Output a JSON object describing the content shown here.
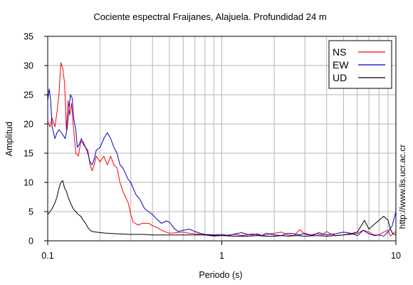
{
  "chart_data": {
    "type": "line",
    "title": "Cociente espectral Fraijanes, Alajuela. Profundidad 24 m",
    "xlabel": "Periodo (s)",
    "ylabel": "Amplitud",
    "xscale": "log",
    "xlim": [
      0.1,
      10
    ],
    "ylim": [
      0,
      35
    ],
    "xticks": [
      0.1,
      1,
      10
    ],
    "xtick_labels": [
      "0.1",
      "1",
      "10"
    ],
    "yticks": [
      0,
      5,
      10,
      15,
      20,
      25,
      30,
      35
    ],
    "ytick_labels": [
      "0",
      "5",
      "10",
      "15",
      "20",
      "25",
      "30",
      "35"
    ],
    "grid": true,
    "legend_position": "top-right",
    "watermark": "http://www.lis.ucr.ac.cr",
    "series": [
      {
        "name": "NS",
        "color": "#ff0000",
        "points": [
          [
            0.1,
            20.5
          ],
          [
            0.103,
            19.5
          ],
          [
            0.106,
            21
          ],
          [
            0.11,
            19.5
          ],
          [
            0.113,
            22
          ],
          [
            0.116,
            25
          ],
          [
            0.119,
            30.5
          ],
          [
            0.122,
            29.5
          ],
          [
            0.125,
            27
          ],
          [
            0.128,
            19
          ],
          [
            0.131,
            24
          ],
          [
            0.134,
            21.5
          ],
          [
            0.137,
            23.5
          ],
          [
            0.14,
            20
          ],
          [
            0.145,
            15
          ],
          [
            0.15,
            14.5
          ],
          [
            0.155,
            17
          ],
          [
            0.16,
            17
          ],
          [
            0.165,
            16
          ],
          [
            0.17,
            15.5
          ],
          [
            0.175,
            13
          ],
          [
            0.18,
            12
          ],
          [
            0.185,
            13
          ],
          [
            0.19,
            14.5
          ],
          [
            0.2,
            13.5
          ],
          [
            0.21,
            14.5
          ],
          [
            0.22,
            13
          ],
          [
            0.23,
            14.5
          ],
          [
            0.24,
            13
          ],
          [
            0.25,
            12.5
          ],
          [
            0.26,
            10
          ],
          [
            0.27,
            8.5
          ],
          [
            0.28,
            7.5
          ],
          [
            0.29,
            6.5
          ],
          [
            0.3,
            4.5
          ],
          [
            0.31,
            3.2
          ],
          [
            0.33,
            2.7
          ],
          [
            0.35,
            3
          ],
          [
            0.38,
            3
          ],
          [
            0.4,
            2.6
          ],
          [
            0.43,
            2.2
          ],
          [
            0.45,
            1.8
          ],
          [
            0.5,
            1.3
          ],
          [
            0.55,
            1.4
          ],
          [
            0.6,
            1.5
          ],
          [
            0.65,
            1.3
          ],
          [
            0.7,
            1.2
          ],
          [
            0.8,
            1.0
          ],
          [
            0.9,
            0.8
          ],
          [
            1.0,
            0.9
          ],
          [
            1.1,
            1.0
          ],
          [
            1.2,
            1.1
          ],
          [
            1.3,
            0.9
          ],
          [
            1.4,
            1.0
          ],
          [
            1.5,
            1.2
          ],
          [
            1.6,
            1.0
          ],
          [
            1.7,
            0.9
          ],
          [
            1.8,
            1.0
          ],
          [
            1.9,
            1.2
          ],
          [
            2.0,
            1.3
          ],
          [
            2.2,
            1.5
          ],
          [
            2.4,
            1.0
          ],
          [
            2.6,
            0.9
          ],
          [
            2.8,
            1.9
          ],
          [
            3.0,
            1.1
          ],
          [
            3.2,
            1.0
          ],
          [
            3.5,
            1.2
          ],
          [
            3.8,
            1.0
          ],
          [
            4.0,
            1.6
          ],
          [
            4.2,
            1.2
          ],
          [
            4.5,
            0.9
          ],
          [
            5.0,
            1.0
          ],
          [
            5.5,
            1.1
          ],
          [
            6.0,
            1.3
          ],
          [
            6.5,
            1.8
          ],
          [
            7.0,
            1.5
          ],
          [
            7.5,
            1.0
          ],
          [
            8.0,
            1.0
          ],
          [
            8.5,
            1.5
          ],
          [
            9.0,
            1.8
          ],
          [
            9.3,
            0.8
          ],
          [
            9.6,
            1.2
          ],
          [
            10.0,
            1.6
          ]
        ]
      },
      {
        "name": "EW",
        "color": "#0000cc",
        "points": [
          [
            0.1,
            24
          ],
          [
            0.102,
            26
          ],
          [
            0.104,
            24
          ],
          [
            0.106,
            19.5
          ],
          [
            0.11,
            17.5
          ],
          [
            0.113,
            18.5
          ],
          [
            0.116,
            19
          ],
          [
            0.12,
            18.5
          ],
          [
            0.123,
            18
          ],
          [
            0.126,
            17.5
          ],
          [
            0.129,
            19
          ],
          [
            0.132,
            22
          ],
          [
            0.135,
            25
          ],
          [
            0.138,
            24.5
          ],
          [
            0.141,
            21
          ],
          [
            0.145,
            19
          ],
          [
            0.148,
            16
          ],
          [
            0.152,
            16.5
          ],
          [
            0.156,
            17.5
          ],
          [
            0.16,
            16.5
          ],
          [
            0.165,
            16
          ],
          [
            0.17,
            15
          ],
          [
            0.175,
            13.5
          ],
          [
            0.18,
            13
          ],
          [
            0.185,
            14
          ],
          [
            0.19,
            15.5
          ],
          [
            0.2,
            16
          ],
          [
            0.21,
            17.5
          ],
          [
            0.22,
            18.5
          ],
          [
            0.23,
            17.5
          ],
          [
            0.24,
            16
          ],
          [
            0.25,
            15
          ],
          [
            0.26,
            13
          ],
          [
            0.27,
            12.5
          ],
          [
            0.28,
            11.5
          ],
          [
            0.29,
            10.5
          ],
          [
            0.3,
            10
          ],
          [
            0.32,
            8
          ],
          [
            0.34,
            7
          ],
          [
            0.36,
            5.5
          ],
          [
            0.38,
            5
          ],
          [
            0.4,
            4.5
          ],
          [
            0.42,
            3.8
          ],
          [
            0.45,
            3
          ],
          [
            0.48,
            3.4
          ],
          [
            0.5,
            3.2
          ],
          [
            0.53,
            2.2
          ],
          [
            0.56,
            1.6
          ],
          [
            0.6,
            1.8
          ],
          [
            0.65,
            2
          ],
          [
            0.7,
            1.6
          ],
          [
            0.75,
            1.3
          ],
          [
            0.8,
            1.1
          ],
          [
            0.9,
            1.0
          ],
          [
            1.0,
            1.1
          ],
          [
            1.1,
            0.9
          ],
          [
            1.2,
            1.2
          ],
          [
            1.3,
            1.4
          ],
          [
            1.4,
            1.1
          ],
          [
            1.5,
            1.0
          ],
          [
            1.6,
            1.2
          ],
          [
            1.7,
            0.9
          ],
          [
            1.8,
            1.3
          ],
          [
            2.0,
            1.0
          ],
          [
            2.2,
            0.9
          ],
          [
            2.4,
            1.3
          ],
          [
            2.6,
            1.2
          ],
          [
            2.8,
            1.0
          ],
          [
            3.0,
            1.3
          ],
          [
            3.3,
            0.9
          ],
          [
            3.6,
            1.4
          ],
          [
            4.0,
            1.0
          ],
          [
            4.5,
            1.2
          ],
          [
            5.0,
            1.5
          ],
          [
            5.5,
            1.3
          ],
          [
            6.0,
            0.9
          ],
          [
            6.5,
            1.8
          ],
          [
            7.0,
            1.2
          ],
          [
            7.5,
            0.9
          ],
          [
            8.0,
            1.0
          ],
          [
            8.5,
            0.8
          ],
          [
            9.0,
            1.5
          ],
          [
            9.5,
            2.5
          ],
          [
            10.0,
            5
          ]
        ]
      },
      {
        "name": "UD",
        "color": "#000000",
        "points": [
          [
            0.1,
            4.5
          ],
          [
            0.103,
            5
          ],
          [
            0.106,
            5.5
          ],
          [
            0.11,
            6.5
          ],
          [
            0.113,
            7.5
          ],
          [
            0.116,
            9
          ],
          [
            0.119,
            10
          ],
          [
            0.122,
            10.3
          ],
          [
            0.125,
            9
          ],
          [
            0.128,
            8.5
          ],
          [
            0.131,
            7.5
          ],
          [
            0.135,
            6.5
          ],
          [
            0.14,
            5.5
          ],
          [
            0.145,
            5
          ],
          [
            0.15,
            4.5
          ],
          [
            0.155,
            4.2
          ],
          [
            0.16,
            3.5
          ],
          [
            0.165,
            3
          ],
          [
            0.17,
            2.3
          ],
          [
            0.175,
            1.8
          ],
          [
            0.18,
            1.6
          ],
          [
            0.19,
            1.5
          ],
          [
            0.2,
            1.4
          ],
          [
            0.22,
            1.3
          ],
          [
            0.25,
            1.2
          ],
          [
            0.3,
            1.1
          ],
          [
            0.35,
            1.1
          ],
          [
            0.4,
            1.0
          ],
          [
            0.5,
            1.0
          ],
          [
            0.6,
            1.0
          ],
          [
            0.7,
            1.0
          ],
          [
            0.8,
            1.0
          ],
          [
            0.9,
            0.9
          ],
          [
            1.0,
            0.9
          ],
          [
            1.2,
            0.8
          ],
          [
            1.4,
            0.8
          ],
          [
            1.6,
            0.9
          ],
          [
            1.8,
            0.8
          ],
          [
            2.0,
            0.8
          ],
          [
            2.2,
            0.9
          ],
          [
            2.4,
            0.8
          ],
          [
            2.7,
            0.9
          ],
          [
            3.0,
            0.8
          ],
          [
            3.5,
            0.9
          ],
          [
            4.0,
            0.8
          ],
          [
            4.5,
            0.9
          ],
          [
            5.0,
            1.0
          ],
          [
            5.5,
            1.2
          ],
          [
            6.0,
            1.5
          ],
          [
            6.3,
            2.5
          ],
          [
            6.6,
            3.5
          ],
          [
            7.0,
            2.0
          ],
          [
            7.5,
            2.8
          ],
          [
            8.0,
            3.5
          ],
          [
            8.5,
            4.2
          ],
          [
            9.0,
            3.6
          ],
          [
            9.3,
            2.0
          ],
          [
            9.6,
            1.2
          ],
          [
            10.0,
            1.0
          ]
        ]
      }
    ]
  }
}
